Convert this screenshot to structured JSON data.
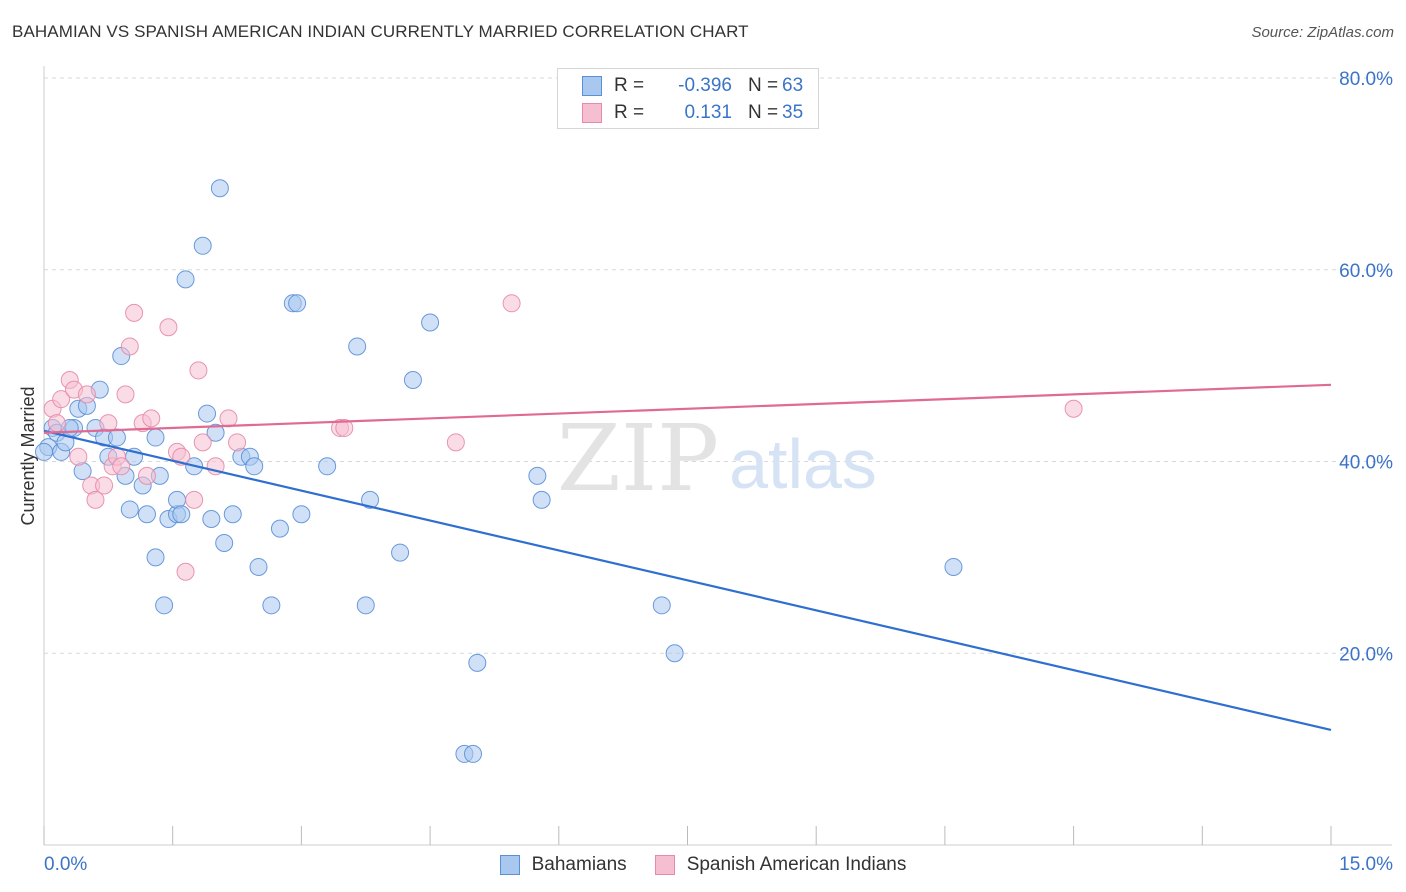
{
  "header": {
    "title": "BAHAMIAN VS SPANISH AMERICAN INDIAN CURRENTLY MARRIED CORRELATION CHART",
    "source": "Source: ZipAtlas.com"
  },
  "watermark": {
    "zip": "ZIP",
    "atlas": "atlas"
  },
  "legend": {
    "rows": [
      {
        "r_label": "R =",
        "r_value": "-0.396",
        "n_label": "N =",
        "n_value": "63"
      },
      {
        "r_label": "R =",
        "r_value": "0.131",
        "n_label": "N =",
        "n_value": "35"
      }
    ]
  },
  "bottom_legend": {
    "items": [
      "Bahamians",
      "Spanish American Indians"
    ]
  },
  "colors": {
    "blue_fill": "#a9c8f0",
    "blue_stroke": "#5b8fd6",
    "blue_line": "#2f6fd0",
    "pink_fill": "#f6bfd1",
    "pink_stroke": "#e58aa8",
    "pink_line": "#e06a93",
    "tick_text": "#3b74c7",
    "grid": "#d9d9d9"
  },
  "chart_data": {
    "type": "scatter",
    "title": "BAHAMIAN VS SPANISH AMERICAN INDIAN CURRENTLY MARRIED CORRELATION CHART",
    "xlabel": "",
    "ylabel": "Currently Married",
    "xlim": [
      0,
      15
    ],
    "ylim": [
      0,
      80
    ],
    "x_tick_labels": [
      {
        "value": 0,
        "label": "0.0%"
      },
      {
        "value": 15,
        "label": "15.0%"
      }
    ],
    "y_tick_labels": [
      {
        "value": 20,
        "label": "20.0%"
      },
      {
        "value": 40,
        "label": "40.0%"
      },
      {
        "value": 60,
        "label": "60.0%"
      },
      {
        "value": 80,
        "label": "80.0%"
      }
    ],
    "grid": true,
    "series": [
      {
        "name": "Bahamians",
        "color": "#a9c8f0",
        "trend": {
          "x": [
            0,
            15
          ],
          "y": [
            43.2,
            12.0
          ]
        },
        "points": [
          [
            0.05,
            41.5
          ],
          [
            0.1,
            43.5
          ],
          [
            0.15,
            43.0
          ],
          [
            0.2,
            41.0
          ],
          [
            0.25,
            42.0
          ],
          [
            0.35,
            43.5
          ],
          [
            0.4,
            45.5
          ],
          [
            0.45,
            39.0
          ],
          [
            0.5,
            45.8
          ],
          [
            0.6,
            43.5
          ],
          [
            0.65,
            47.5
          ],
          [
            0.7,
            42.5
          ],
          [
            0.75,
            40.5
          ],
          [
            0.85,
            42.5
          ],
          [
            0.9,
            51.0
          ],
          [
            0.95,
            38.5
          ],
          [
            1.0,
            35.0
          ],
          [
            1.05,
            40.5
          ],
          [
            1.15,
            37.5
          ],
          [
            1.2,
            34.5
          ],
          [
            1.3,
            42.5
          ],
          [
            1.3,
            30.0
          ],
          [
            1.35,
            38.5
          ],
          [
            1.4,
            25.0
          ],
          [
            1.45,
            34.0
          ],
          [
            1.55,
            34.5
          ],
          [
            1.55,
            36.0
          ],
          [
            1.6,
            34.5
          ],
          [
            1.65,
            59.0
          ],
          [
            1.75,
            39.5
          ],
          [
            1.85,
            62.5
          ],
          [
            1.9,
            45.0
          ],
          [
            1.95,
            34.0
          ],
          [
            2.0,
            43.0
          ],
          [
            2.05,
            68.5
          ],
          [
            2.1,
            31.5
          ],
          [
            2.2,
            34.5
          ],
          [
            2.3,
            40.5
          ],
          [
            2.4,
            40.5
          ],
          [
            2.45,
            39.5
          ],
          [
            2.5,
            29.0
          ],
          [
            2.65,
            25.0
          ],
          [
            2.75,
            33.0
          ],
          [
            2.9,
            56.5
          ],
          [
            2.95,
            56.5
          ],
          [
            3.0,
            34.5
          ],
          [
            3.3,
            39.5
          ],
          [
            3.65,
            52.0
          ],
          [
            3.75,
            25.0
          ],
          [
            3.8,
            36.0
          ],
          [
            4.15,
            30.5
          ],
          [
            4.3,
            48.5
          ],
          [
            4.5,
            54.5
          ],
          [
            4.9,
            9.5
          ],
          [
            5.0,
            9.5
          ],
          [
            5.05,
            19.0
          ],
          [
            5.75,
            38.5
          ],
          [
            5.8,
            36.0
          ],
          [
            7.2,
            25.0
          ],
          [
            7.35,
            20.0
          ],
          [
            10.6,
            29.0
          ],
          [
            0.0,
            41.0
          ],
          [
            0.3,
            43.5
          ]
        ]
      },
      {
        "name": "Spanish American Indians",
        "color": "#f6bfd1",
        "trend": {
          "x": [
            0,
            15
          ],
          "y": [
            43.0,
            48.0
          ]
        },
        "points": [
          [
            0.1,
            45.5
          ],
          [
            0.15,
            44.0
          ],
          [
            0.2,
            46.5
          ],
          [
            0.3,
            48.5
          ],
          [
            0.35,
            47.5
          ],
          [
            0.4,
            40.5
          ],
          [
            0.5,
            47.0
          ],
          [
            0.55,
            37.5
          ],
          [
            0.6,
            36.0
          ],
          [
            0.7,
            37.5
          ],
          [
            0.75,
            44.0
          ],
          [
            0.8,
            39.5
          ],
          [
            0.85,
            40.5
          ],
          [
            0.9,
            39.5
          ],
          [
            0.95,
            47.0
          ],
          [
            1.0,
            52.0
          ],
          [
            1.05,
            55.5
          ],
          [
            1.15,
            44.0
          ],
          [
            1.2,
            38.5
          ],
          [
            1.25,
            44.5
          ],
          [
            1.45,
            54.0
          ],
          [
            1.55,
            41.0
          ],
          [
            1.6,
            40.5
          ],
          [
            1.65,
            28.5
          ],
          [
            1.75,
            36.0
          ],
          [
            1.8,
            49.5
          ],
          [
            1.85,
            42.0
          ],
          [
            2.0,
            39.5
          ],
          [
            2.15,
            44.5
          ],
          [
            2.25,
            42.0
          ],
          [
            3.45,
            43.5
          ],
          [
            3.5,
            43.5
          ],
          [
            4.8,
            42.0
          ],
          [
            5.45,
            56.5
          ],
          [
            12.0,
            45.5
          ]
        ]
      }
    ]
  }
}
